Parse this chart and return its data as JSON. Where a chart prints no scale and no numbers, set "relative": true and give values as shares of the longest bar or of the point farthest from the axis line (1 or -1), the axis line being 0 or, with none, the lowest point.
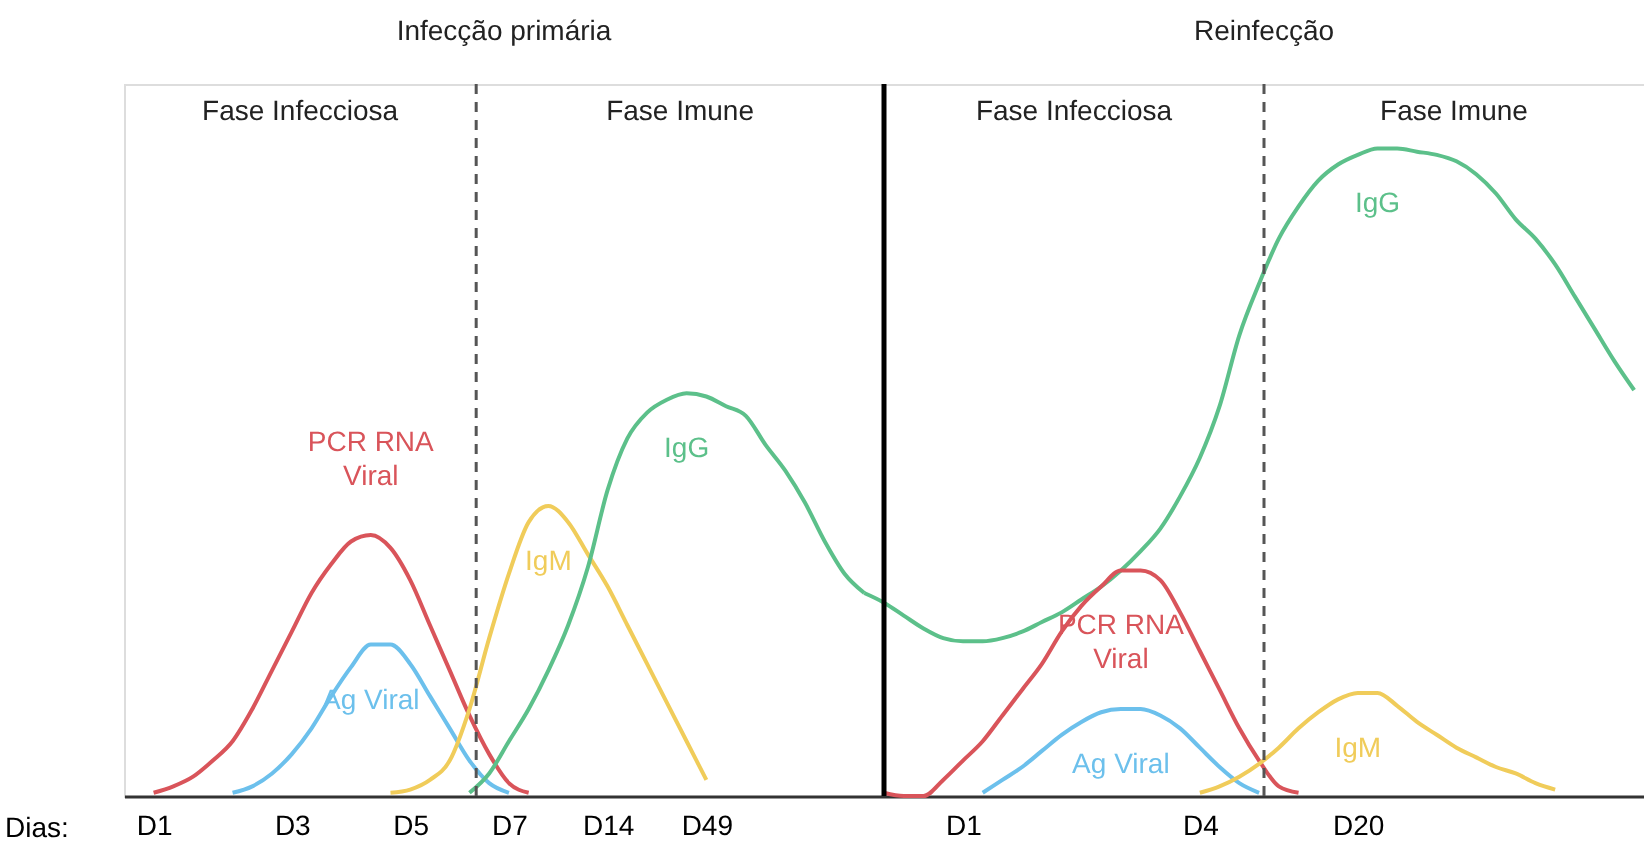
{
  "chart_data": {
    "type": "line",
    "relative": true,
    "xlabel": "Dias:",
    "categories": [
      null,
      "D1",
      null,
      null,
      null,
      null,
      null,
      null,
      "D3",
      null,
      null,
      null,
      null,
      null,
      "D5",
      null,
      null,
      null,
      null,
      "D7",
      null,
      null,
      null,
      null,
      "D14",
      null,
      null,
      null,
      null,
      "D49",
      null,
      null,
      null,
      null,
      null,
      null,
      null,
      null,
      null,
      null,
      null,
      null,
      "D1",
      null,
      null,
      null,
      null,
      null,
      null,
      null,
      null,
      null,
      null,
      null,
      "D4",
      null,
      null,
      null,
      null,
      null,
      null,
      null,
      "D20",
      null,
      null,
      null,
      null,
      null,
      null,
      null,
      null,
      null,
      null,
      null,
      null,
      null,
      null
    ],
    "grid": false,
    "legend": false,
    "marker": "none",
    "line_style": "solid",
    "annotations": [
      "Infecção primária",
      "Reinfecção",
      "Fase Infecciosa",
      "Fase Imune",
      "Fase Infecciosa",
      "Fase Imune"
    ],
    "series": [
      {
        "name": "PCR RNA Viral",
        "color": "#d9545a",
        "values": [
          null,
          0,
          0.01,
          0.025,
          0.05,
          0.08,
          0.13,
          0.19,
          0.25,
          0.31,
          0.355,
          0.39,
          0.4,
          0.38,
          0.33,
          0.26,
          0.19,
          0.12,
          0.06,
          0.015,
          0,
          null,
          null,
          null,
          null,
          null,
          null,
          null,
          null,
          null,
          null,
          null,
          null,
          null,
          null,
          null,
          null,
          null,
          null,
          null,
          null,
          null,
          null,
          null,
          null,
          null,
          null,
          null,
          null,
          null,
          null,
          null,
          null,
          null,
          null,
          null,
          null,
          null,
          null,
          null,
          null,
          null,
          null,
          null,
          null,
          null,
          null,
          null,
          null,
          null,
          null,
          null,
          null,
          null,
          null,
          null,
          null
        ]
      },
      {
        "name": "Ag Viral",
        "color": "#6cc0ec",
        "values": [
          null,
          null,
          null,
          null,
          null,
          0,
          0.01,
          0.03,
          0.06,
          0.1,
          0.15,
          0.195,
          0.23,
          0.23,
          0.2,
          0.15,
          0.1,
          0.05,
          0.015,
          0,
          null,
          null,
          null,
          null,
          null,
          null,
          null,
          null,
          null,
          null,
          null,
          null,
          null,
          null,
          null,
          null,
          null,
          null,
          null,
          null,
          null,
          null,
          null,
          null,
          null,
          null,
          null,
          null,
          null,
          null,
          null,
          null,
          null,
          null,
          null,
          null,
          null,
          null,
          null,
          null,
          null,
          null,
          null,
          null,
          null,
          null,
          null,
          null,
          null,
          null,
          null,
          null,
          null,
          null,
          null,
          null,
          null
        ]
      },
      {
        "name": "IgM",
        "color": "#f0cc5a",
        "values": [
          null,
          null,
          null,
          null,
          null,
          null,
          null,
          null,
          null,
          null,
          null,
          null,
          null,
          0,
          0.005,
          0.02,
          0.05,
          0.13,
          0.24,
          0.34,
          0.42,
          0.445,
          0.42,
          0.37,
          0.32,
          0.26,
          0.2,
          0.14,
          0.08,
          0.02,
          null,
          null,
          null,
          null,
          null,
          null,
          null,
          null,
          null,
          null,
          null,
          null,
          null,
          null,
          null,
          null,
          null,
          null,
          null,
          null,
          null,
          null,
          null,
          null,
          null,
          null,
          null,
          null,
          null,
          null,
          null,
          null,
          null,
          null,
          null,
          null,
          null,
          null,
          null,
          null,
          null,
          null,
          null,
          null,
          null,
          null,
          null
        ]
      },
      {
        "name": "IgG",
        "color": "#5cc08a",
        "values": [
          null,
          null,
          null,
          null,
          null,
          null,
          null,
          null,
          null,
          null,
          null,
          null,
          null,
          null,
          null,
          null,
          null,
          0,
          0.03,
          0.08,
          0.13,
          0.19,
          0.26,
          0.35,
          0.47,
          0.55,
          0.59,
          0.61,
          0.62,
          0.615,
          0.6,
          0.585,
          0.54,
          0.5,
          0.45,
          0.39,
          0.34,
          0.31,
          null,
          null,
          null,
          null,
          null,
          null,
          null,
          null,
          null,
          null,
          null,
          null,
          null,
          null,
          null,
          null,
          null,
          null,
          null,
          null,
          null,
          null,
          null,
          null,
          null,
          null,
          null,
          null,
          null,
          null,
          null,
          null,
          null,
          null,
          null,
          null,
          null,
          null,
          null
        ]
      },
      {
        "name": "IgG",
        "color": "#5cc08a",
        "values": [
          null,
          null,
          null,
          null,
          null,
          null,
          null,
          null,
          null,
          null,
          null,
          null,
          null,
          null,
          null,
          null,
          null,
          null,
          null,
          null,
          null,
          null,
          null,
          null,
          null,
          null,
          null,
          null,
          null,
          null,
          null,
          null,
          null,
          null,
          null,
          null,
          null,
          0.31,
          0.295,
          0.275,
          0.255,
          0.24,
          0.235,
          0.235,
          0.24,
          0.25,
          0.265,
          0.28,
          0.3,
          0.32,
          0.345,
          0.375,
          0.41,
          0.46,
          0.52,
          0.6,
          0.71,
          0.79,
          0.86,
          0.91,
          0.95,
          0.975,
          0.99,
          1.0,
          1.0,
          0.995,
          0.99,
          0.98,
          0.96,
          0.93,
          0.89,
          0.86,
          0.82,
          0.77,
          0.72,
          0.67,
          0.625
        ]
      },
      {
        "name": "PCR RNA Viral",
        "color": "#d9545a",
        "values": [
          null,
          null,
          null,
          null,
          null,
          null,
          null,
          null,
          null,
          null,
          null,
          null,
          null,
          null,
          null,
          null,
          null,
          null,
          null,
          null,
          null,
          null,
          null,
          null,
          null,
          null,
          null,
          null,
          null,
          null,
          null,
          null,
          null,
          null,
          null,
          null,
          null,
          null,
          0,
          -0.005,
          -0.005,
          0.02,
          0.05,
          0.08,
          0.12,
          0.16,
          0.2,
          0.25,
          0.29,
          0.32,
          0.345,
          0.345,
          0.33,
          0.28,
          0.22,
          0.16,
          0.1,
          0.05,
          0.01,
          0,
          null,
          null,
          null,
          null,
          null,
          null,
          null,
          null,
          null,
          null,
          null,
          null,
          null,
          null,
          null,
          null,
          null
        ]
      },
      {
        "name": "Ag Viral",
        "color": "#6cc0ec",
        "values": [
          null,
          null,
          null,
          null,
          null,
          null,
          null,
          null,
          null,
          null,
          null,
          null,
          null,
          null,
          null,
          null,
          null,
          null,
          null,
          null,
          null,
          null,
          null,
          null,
          null,
          null,
          null,
          null,
          null,
          null,
          null,
          null,
          null,
          null,
          null,
          null,
          null,
          null,
          null,
          null,
          null,
          null,
          null,
          0,
          0.02,
          0.04,
          0.065,
          0.09,
          0.11,
          0.125,
          0.13,
          0.13,
          0.12,
          0.1,
          0.07,
          0.04,
          0.015,
          0,
          null,
          null,
          null,
          null,
          null,
          null,
          null,
          null,
          null,
          null,
          null,
          null,
          null,
          null,
          null,
          null,
          null,
          null,
          null
        ]
      },
      {
        "name": "IgM",
        "color": "#f0cc5a",
        "values": [
          null,
          null,
          null,
          null,
          null,
          null,
          null,
          null,
          null,
          null,
          null,
          null,
          null,
          null,
          null,
          null,
          null,
          null,
          null,
          null,
          null,
          null,
          null,
          null,
          null,
          null,
          null,
          null,
          null,
          null,
          null,
          null,
          null,
          null,
          null,
          null,
          null,
          null,
          null,
          null,
          null,
          null,
          null,
          null,
          null,
          null,
          null,
          null,
          null,
          null,
          null,
          null,
          null,
          null,
          0,
          0.01,
          0.025,
          0.045,
          0.07,
          0.1,
          0.125,
          0.145,
          0.155,
          0.155,
          0.135,
          0.11,
          0.09,
          0.07,
          0.055,
          0.04,
          0.03,
          0.015,
          0.005,
          null,
          null,
          null,
          null
        ]
      }
    ]
  }
}
